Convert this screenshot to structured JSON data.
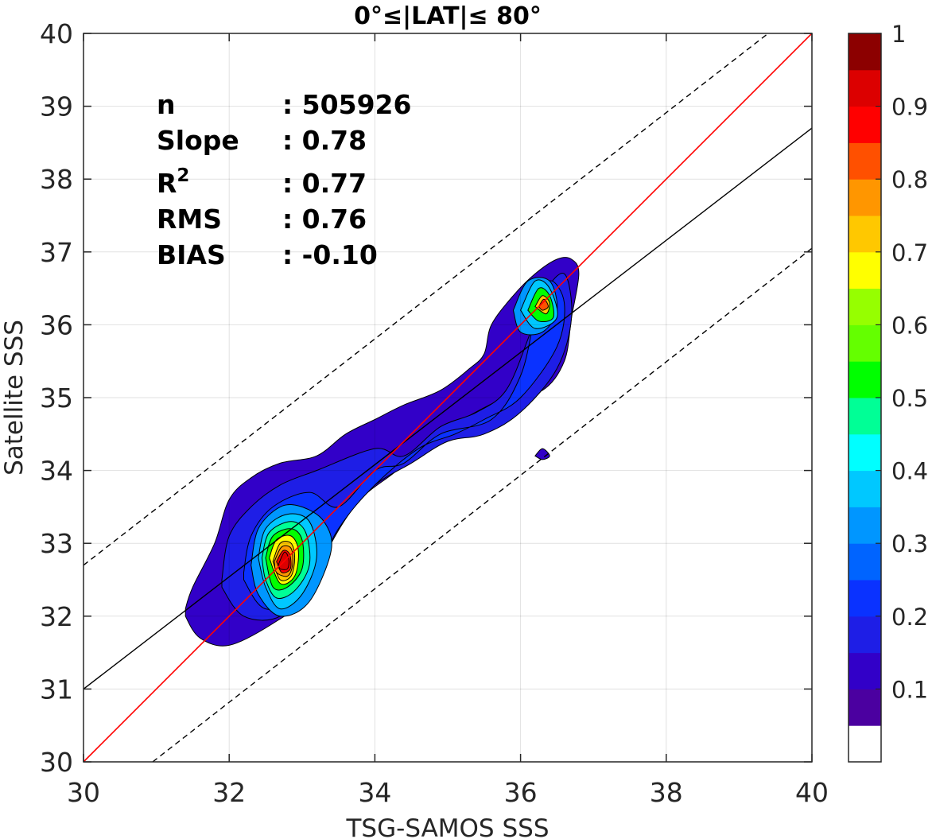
{
  "chart_data": {
    "type": "contour",
    "title": "0°≤|LAT|≤ 80°",
    "xlabel": "TSG-SAMOS SSS",
    "ylabel": "Satellite SSS",
    "xlim": [
      30,
      40
    ],
    "ylim": [
      30,
      40
    ],
    "xticks": [
      "30",
      "32",
      "34",
      "36",
      "38",
      "40"
    ],
    "yticks": [
      "30",
      "31",
      "32",
      "33",
      "34",
      "35",
      "36",
      "37",
      "38",
      "39",
      "40"
    ],
    "grid": true,
    "stats": [
      {
        "label": "n",
        "value": ": 505926"
      },
      {
        "label": "Slope",
        "value": ": 0.78"
      },
      {
        "label": "R",
        "sup": "2",
        "value": ": 0.77"
      },
      {
        "label": "RMS",
        "value": ": 0.76"
      },
      {
        "label": "BIAS",
        "value": ": -0.10"
      }
    ],
    "one_to_one_line": {
      "color": "#ff0000",
      "x": [
        30,
        40
      ],
      "y": [
        30,
        40
      ]
    },
    "regression_line": {
      "color": "#000000",
      "x": [
        30,
        40
      ],
      "y": [
        31.0,
        38.7
      ]
    },
    "bound_lines": [
      {
        "style": "dashed",
        "x": [
          30,
          39.4
        ],
        "y": [
          32.7,
          40
        ]
      },
      {
        "style": "dashed",
        "x": [
          30.95,
          40
        ],
        "y": [
          30,
          37.05
        ]
      }
    ],
    "colorbar": {
      "levels": [
        0,
        0.05,
        0.1,
        0.15,
        0.2,
        0.25,
        0.3,
        0.35,
        0.4,
        0.45,
        0.5,
        0.55,
        0.6,
        0.65,
        0.7,
        0.75,
        0.8,
        0.85,
        0.9,
        0.95,
        1
      ],
      "colors": [
        "#ffffff",
        "#4b00a0",
        "#3200c8",
        "#1e1ee6",
        "#0a32ff",
        "#0064ff",
        "#0096ff",
        "#00c8ff",
        "#00ffff",
        "#00ff96",
        "#00ff00",
        "#64ff00",
        "#96ff00",
        "#ffff00",
        "#ffc800",
        "#ff9600",
        "#ff5000",
        "#ff0000",
        "#dc0000",
        "#8c0000"
      ],
      "tick_values": [
        0.1,
        0.2,
        0.3,
        0.4,
        0.5,
        0.6,
        0.7,
        0.8,
        0.9,
        1
      ],
      "tick_labels": [
        "0.1",
        "0.2",
        "0.3",
        "0.4",
        "0.5",
        "0.6",
        "0.7",
        "0.8",
        "0.9",
        "1"
      ]
    },
    "contours": [
      {
        "level": 0.05,
        "color": "#3200c8",
        "points": [
          [
            31.4,
            32.1
          ],
          [
            31.5,
            32.4
          ],
          [
            31.8,
            33.0
          ],
          [
            32.0,
            33.6
          ],
          [
            32.3,
            33.9
          ],
          [
            32.7,
            34.1
          ],
          [
            33.2,
            34.2
          ],
          [
            33.6,
            34.5
          ],
          [
            34.0,
            34.7
          ],
          [
            34.4,
            34.9
          ],
          [
            34.9,
            35.1
          ],
          [
            35.3,
            35.4
          ],
          [
            35.5,
            35.6
          ],
          [
            35.6,
            36.0
          ],
          [
            35.9,
            36.4
          ],
          [
            36.2,
            36.7
          ],
          [
            36.5,
            36.9
          ],
          [
            36.7,
            36.9
          ],
          [
            36.8,
            36.7
          ],
          [
            36.7,
            36.1
          ],
          [
            36.6,
            35.5
          ],
          [
            36.3,
            35.1
          ],
          [
            35.8,
            35.0
          ],
          [
            35.2,
            34.7
          ],
          [
            34.7,
            34.4
          ],
          [
            34.3,
            34.0
          ],
          [
            33.8,
            33.6
          ],
          [
            33.4,
            33.0
          ],
          [
            33.1,
            32.3
          ],
          [
            32.6,
            31.9
          ],
          [
            32.0,
            31.6
          ],
          [
            31.6,
            31.7
          ],
          [
            31.4,
            32.0
          ]
        ]
      },
      {
        "level": 0.1,
        "color": "#1e1ee6",
        "points": [
          [
            31.9,
            32.5
          ],
          [
            32.0,
            33.1
          ],
          [
            32.3,
            33.5
          ],
          [
            32.7,
            33.8
          ],
          [
            33.2,
            34.0
          ],
          [
            34.0,
            34.3
          ],
          [
            34.4,
            34.2
          ],
          [
            34.9,
            34.6
          ],
          [
            35.4,
            34.8
          ],
          [
            35.8,
            35.1
          ],
          [
            36.1,
            35.8
          ],
          [
            36.3,
            36.4
          ],
          [
            36.6,
            36.7
          ],
          [
            36.7,
            36.1
          ],
          [
            36.5,
            35.4
          ],
          [
            36.0,
            34.8
          ],
          [
            35.5,
            34.5
          ],
          [
            35.0,
            34.4
          ],
          [
            34.5,
            34.1
          ],
          [
            34.0,
            33.8
          ],
          [
            33.5,
            33.3
          ],
          [
            33.1,
            32.5
          ],
          [
            32.7,
            32.0
          ],
          [
            32.2,
            32.0
          ],
          [
            31.9,
            32.4
          ]
        ]
      },
      {
        "level": 0.15,
        "color": "#0a32ff",
        "points": [
          [
            32.2,
            32.6
          ],
          [
            32.3,
            33.1
          ],
          [
            32.6,
            33.5
          ],
          [
            33.1,
            33.7
          ],
          [
            33.5,
            33.5
          ],
          [
            34.0,
            34.0
          ],
          [
            34.4,
            34.1
          ],
          [
            34.9,
            34.5
          ],
          [
            35.6,
            34.7
          ],
          [
            36.0,
            35.3
          ],
          [
            36.2,
            36.1
          ],
          [
            36.4,
            36.6
          ],
          [
            36.6,
            36.3
          ],
          [
            36.5,
            35.7
          ],
          [
            36.0,
            35.0
          ],
          [
            35.5,
            34.7
          ],
          [
            35.1,
            34.5
          ],
          [
            34.6,
            34.3
          ],
          [
            34.0,
            33.8
          ],
          [
            33.5,
            33.2
          ],
          [
            33.0,
            32.3
          ],
          [
            32.5,
            32.1
          ],
          [
            32.2,
            32.5
          ]
        ]
      },
      {
        "level": 0.25,
        "color": "#0096ff",
        "points": [
          [
            32.3,
            32.7
          ],
          [
            32.4,
            33.2
          ],
          [
            32.7,
            33.5
          ],
          [
            33.0,
            33.5
          ],
          [
            33.3,
            33.3
          ],
          [
            33.4,
            32.9
          ],
          [
            33.1,
            32.2
          ],
          [
            32.7,
            32.0
          ],
          [
            32.4,
            32.3
          ],
          [
            32.3,
            32.7
          ]
        ]
      },
      {
        "level": 0.25,
        "color": "#0096ff",
        "points": [
          [
            35.9,
            36.2
          ],
          [
            36.1,
            36.6
          ],
          [
            36.4,
            36.6
          ],
          [
            36.5,
            36.2
          ],
          [
            36.3,
            35.9
          ],
          [
            36.0,
            35.9
          ],
          [
            35.9,
            36.2
          ]
        ]
      },
      {
        "level": 0.35,
        "color": "#00c8ff",
        "points": [
          [
            32.4,
            32.8
          ],
          [
            32.5,
            33.2
          ],
          [
            32.8,
            33.4
          ],
          [
            33.1,
            33.3
          ],
          [
            33.2,
            32.8
          ],
          [
            33.0,
            32.3
          ],
          [
            32.7,
            32.1
          ],
          [
            32.5,
            32.4
          ],
          [
            32.4,
            32.8
          ]
        ]
      },
      {
        "level": 0.35,
        "color": "#00c8ff",
        "points": [
          [
            36.0,
            36.2
          ],
          [
            36.2,
            36.6
          ],
          [
            36.4,
            36.5
          ],
          [
            36.5,
            36.1
          ],
          [
            36.2,
            35.95
          ],
          [
            36.0,
            36.2
          ]
        ]
      },
      {
        "level": 0.45,
        "color": "#00ff96",
        "points": [
          [
            32.45,
            32.8
          ],
          [
            32.55,
            33.15
          ],
          [
            32.85,
            33.3
          ],
          [
            33.05,
            33.15
          ],
          [
            33.1,
            32.7
          ],
          [
            32.9,
            32.35
          ],
          [
            32.65,
            32.25
          ],
          [
            32.5,
            32.5
          ],
          [
            32.45,
            32.8
          ]
        ]
      },
      {
        "level": 0.5,
        "color": "#00ff00",
        "points": [
          [
            32.5,
            32.8
          ],
          [
            32.6,
            33.1
          ],
          [
            32.85,
            33.2
          ],
          [
            33.0,
            33.05
          ],
          [
            33.0,
            32.65
          ],
          [
            32.8,
            32.4
          ],
          [
            32.6,
            32.4
          ],
          [
            32.5,
            32.8
          ]
        ]
      },
      {
        "level": 0.5,
        "color": "#00ff00",
        "points": [
          [
            36.1,
            36.2
          ],
          [
            36.25,
            36.5
          ],
          [
            36.4,
            36.4
          ],
          [
            36.45,
            36.1
          ],
          [
            36.25,
            36.05
          ],
          [
            36.1,
            36.2
          ]
        ]
      },
      {
        "level": 0.6,
        "color": "#ffff00",
        "points": [
          [
            32.55,
            32.8
          ],
          [
            32.65,
            33.05
          ],
          [
            32.85,
            33.1
          ],
          [
            32.95,
            32.9
          ],
          [
            32.9,
            32.55
          ],
          [
            32.7,
            32.45
          ],
          [
            32.55,
            32.8
          ]
        ]
      },
      {
        "level": 0.65,
        "color": "#ffc800",
        "points": [
          [
            32.6,
            32.75
          ],
          [
            32.7,
            33.0
          ],
          [
            32.85,
            33.0
          ],
          [
            32.9,
            32.8
          ],
          [
            32.85,
            32.55
          ],
          [
            32.7,
            32.5
          ],
          [
            32.6,
            32.75
          ]
        ]
      },
      {
        "level": 0.65,
        "color": "#ffc800",
        "points": [
          [
            36.2,
            36.25
          ],
          [
            36.3,
            36.4
          ],
          [
            36.4,
            36.3
          ],
          [
            36.35,
            36.15
          ],
          [
            36.2,
            36.25
          ]
        ]
      },
      {
        "level": 0.75,
        "color": "#ff9600",
        "points": [
          [
            32.62,
            32.75
          ],
          [
            32.72,
            32.95
          ],
          [
            32.85,
            32.93
          ],
          [
            32.87,
            32.7
          ],
          [
            32.8,
            32.55
          ],
          [
            32.65,
            32.6
          ],
          [
            32.62,
            32.75
          ]
        ]
      },
      {
        "level": 0.8,
        "color": "#ff5000",
        "points": [
          [
            36.25,
            36.25
          ],
          [
            36.32,
            36.35
          ],
          [
            36.38,
            36.25
          ],
          [
            36.3,
            36.2
          ],
          [
            36.25,
            36.25
          ]
        ]
      },
      {
        "level": 0.85,
        "color": "#ff0000",
        "points": [
          [
            32.65,
            32.75
          ],
          [
            32.74,
            32.9
          ],
          [
            32.83,
            32.85
          ],
          [
            32.84,
            32.65
          ],
          [
            32.72,
            32.6
          ],
          [
            32.65,
            32.75
          ]
        ]
      },
      {
        "level": 0.9,
        "color": "#dc0000",
        "points": [
          [
            32.68,
            32.72
          ],
          [
            32.76,
            32.88
          ],
          [
            32.82,
            32.78
          ],
          [
            32.8,
            32.65
          ],
          [
            32.7,
            32.65
          ],
          [
            32.68,
            32.72
          ]
        ]
      },
      {
        "level": 0.05,
        "color": "#3200c8",
        "points": [
          [
            36.2,
            34.2
          ],
          [
            36.3,
            34.3
          ],
          [
            36.4,
            34.2
          ],
          [
            36.3,
            34.15
          ],
          [
            36.2,
            34.2
          ]
        ]
      }
    ]
  }
}
